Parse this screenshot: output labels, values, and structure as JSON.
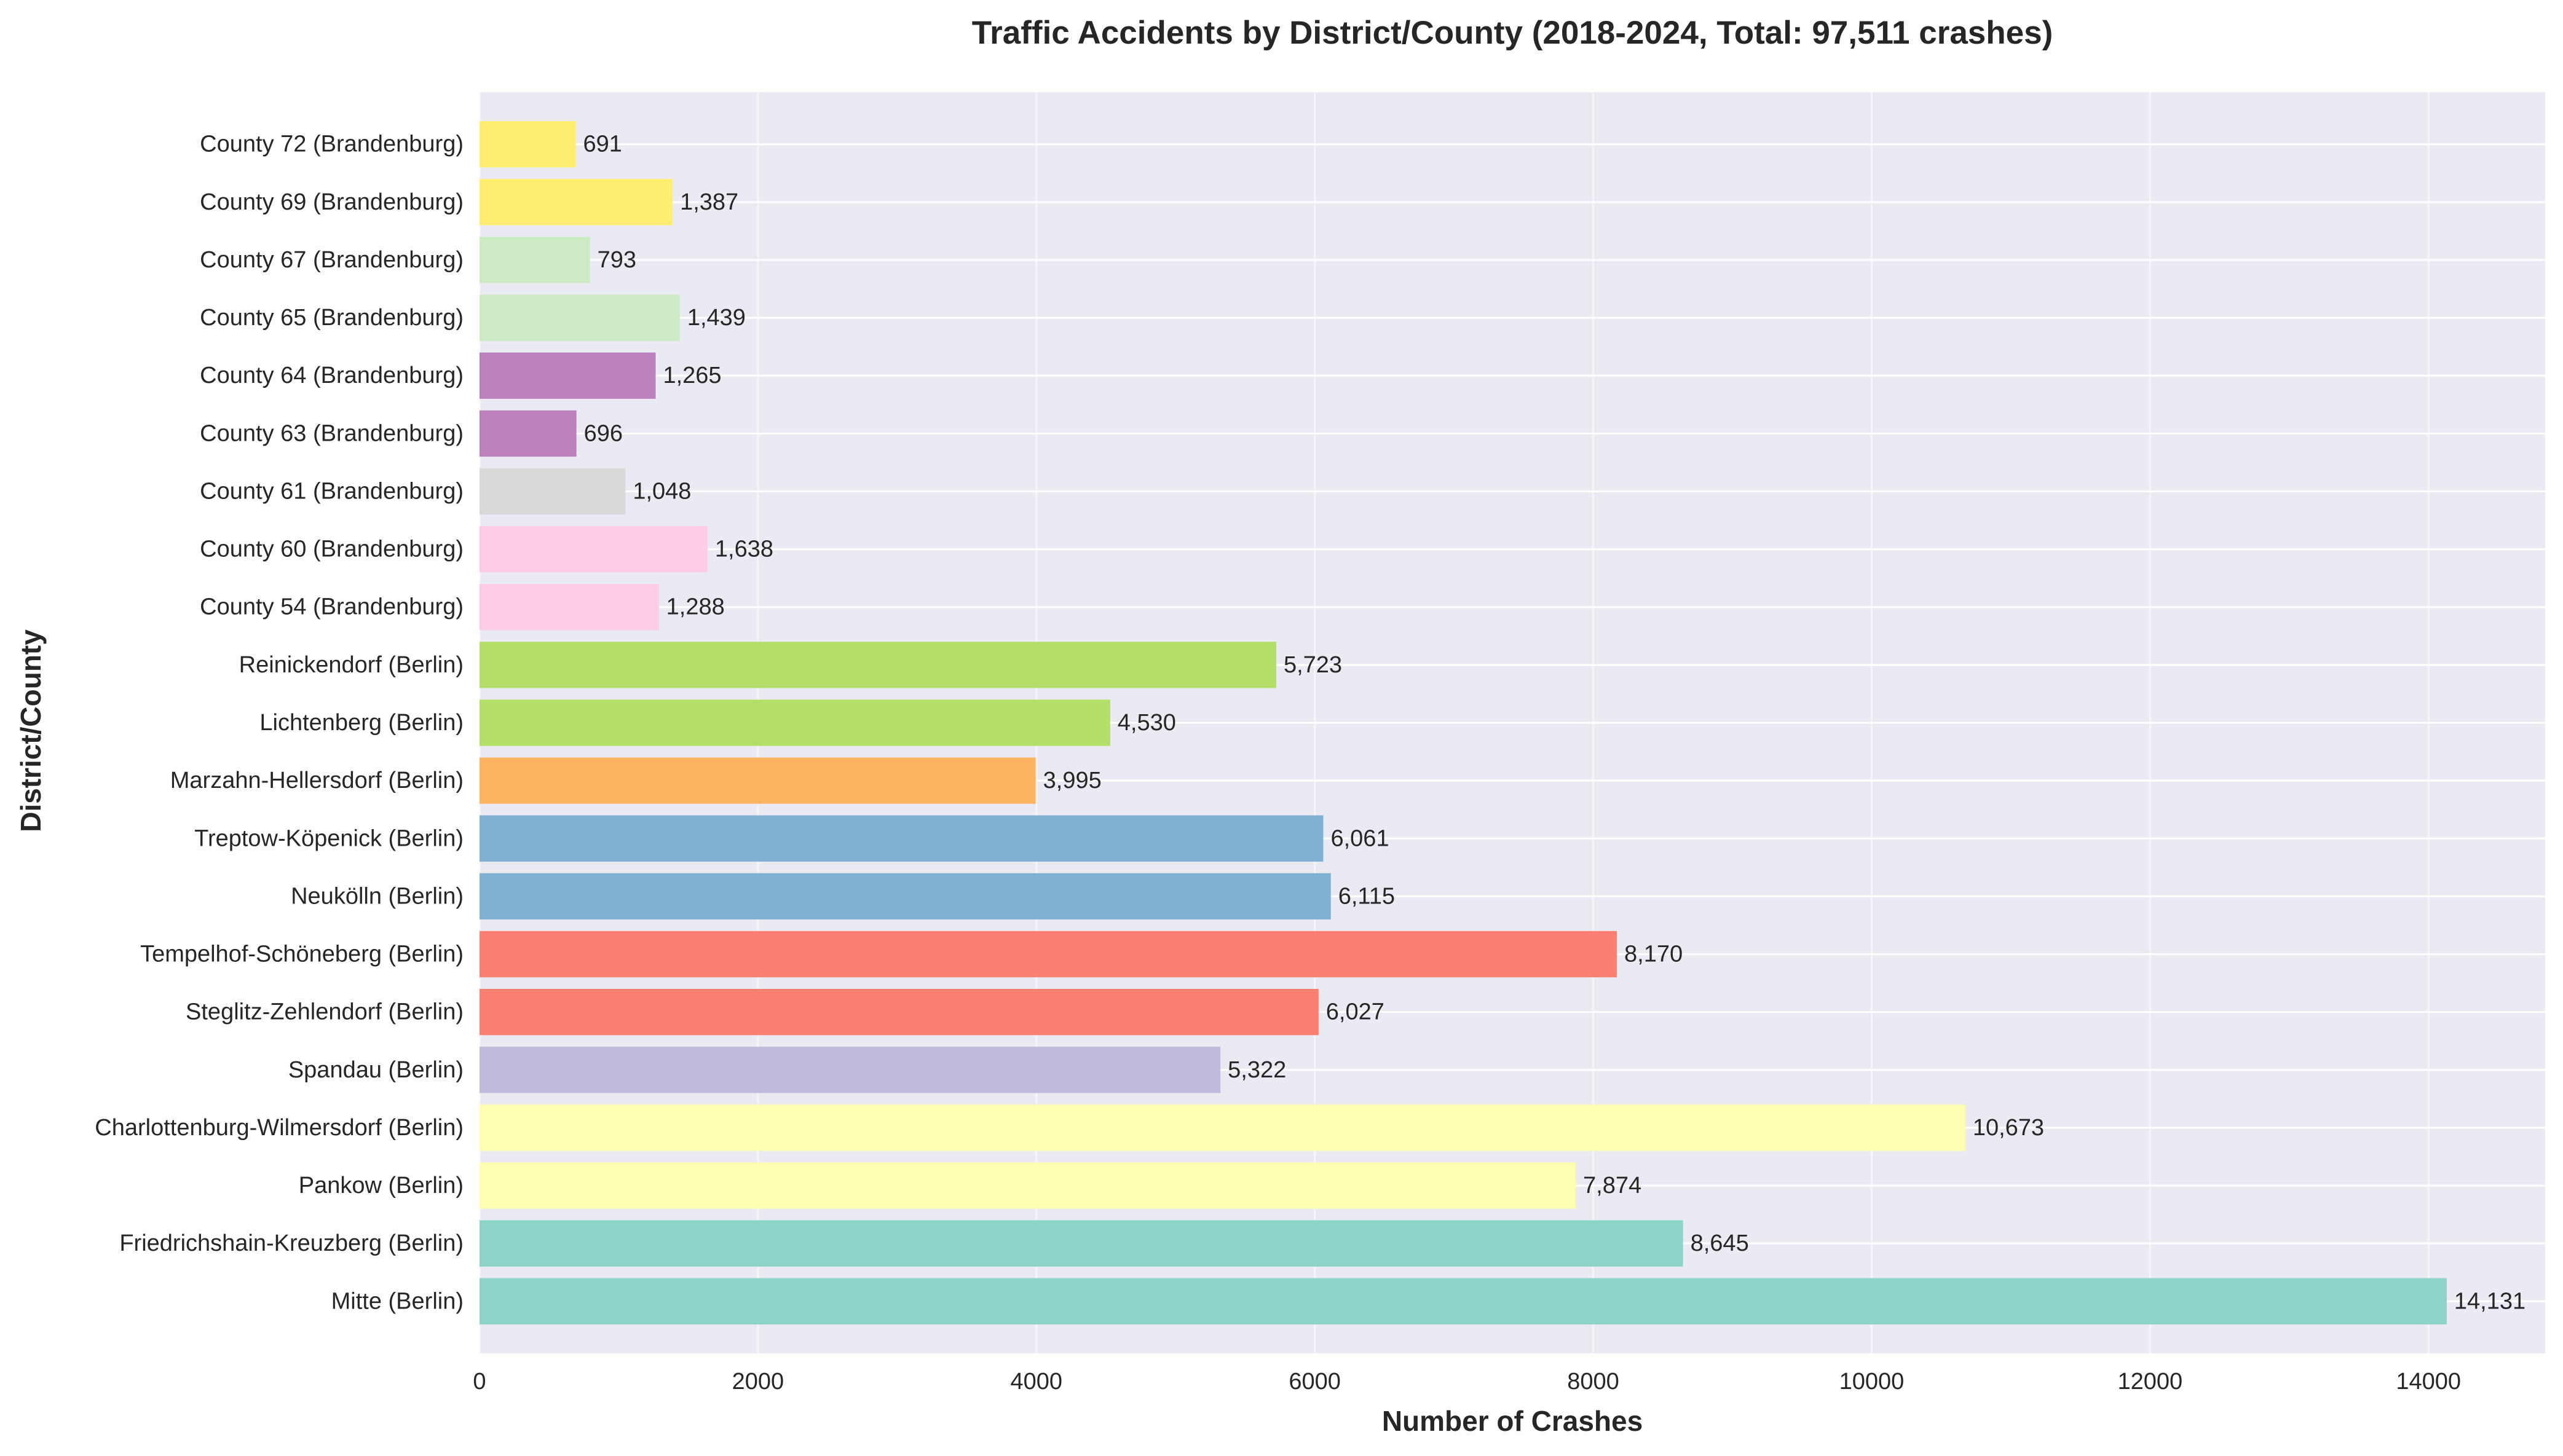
{
  "chart_data": {
    "type": "bar",
    "orientation": "horizontal",
    "title": "Traffic Accidents by District/County (2018-2024, Total: 97,511 crashes)",
    "xlabel": "Number of Crashes",
    "ylabel": "District/County",
    "xlim": [
      0,
      14838
    ],
    "xticks": [
      0,
      2000,
      4000,
      6000,
      8000,
      10000,
      12000,
      14000
    ],
    "xtick_labels": [
      "0",
      "2000",
      "4000",
      "6000",
      "8000",
      "10000",
      "12000",
      "14000"
    ],
    "grid": true,
    "categories": [
      "Mitte (Berlin)",
      "Friedrichshain-Kreuzberg (Berlin)",
      "Pankow (Berlin)",
      "Charlottenburg-Wilmersdorf (Berlin)",
      "Spandau (Berlin)",
      "Steglitz-Zehlendorf (Berlin)",
      "Tempelhof-Schöneberg (Berlin)",
      "Neukölln (Berlin)",
      "Treptow-Köpenick (Berlin)",
      "Marzahn-Hellersdorf (Berlin)",
      "Lichtenberg (Berlin)",
      "Reinickendorf (Berlin)",
      "County 54 (Brandenburg)",
      "County 60 (Brandenburg)",
      "County 61 (Brandenburg)",
      "County 63 (Brandenburg)",
      "County 64 (Brandenburg)",
      "County 65 (Brandenburg)",
      "County 67 (Brandenburg)",
      "County 69 (Brandenburg)",
      "County 72 (Brandenburg)"
    ],
    "values": [
      14131,
      8645,
      7874,
      10673,
      5322,
      6027,
      8170,
      6115,
      6061,
      3995,
      4530,
      5723,
      1288,
      1638,
      1048,
      696,
      1265,
      1439,
      793,
      1387,
      691
    ],
    "value_labels": [
      "14,131",
      "8,645",
      "7,874",
      "10,673",
      "5,322",
      "6,027",
      "8,170",
      "6,115",
      "6,061",
      "3,995",
      "4,530",
      "5,723",
      "1,288",
      "1,638",
      "1,048",
      "696",
      "1,265",
      "1,439",
      "793",
      "1,387",
      "691"
    ],
    "colors": [
      "#8dd3c7",
      "#8dd3c7",
      "#ffffb3",
      "#ffffb3",
      "#bebada",
      "#fb8072",
      "#fb8072",
      "#80b1d3",
      "#80b1d3",
      "#fdb462",
      "#b3de69",
      "#b3de69",
      "#fccde5",
      "#fccde5",
      "#d9d9d9",
      "#bc80bd",
      "#bc80bd",
      "#ccebc5",
      "#ccebc5",
      "#ffed6f",
      "#ffed6f"
    ],
    "background_color": "#eaeaf2",
    "grid_color": "#ffffff"
  }
}
